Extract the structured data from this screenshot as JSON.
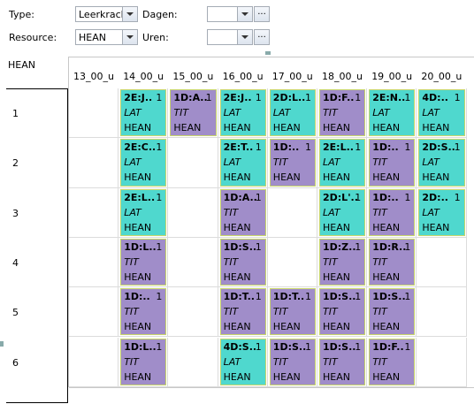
{
  "toolbar": {
    "type_label": "Type:",
    "type_value": "Leerkrach",
    "dagen_label": "Dagen:",
    "resource_label": "Resource:",
    "resource_value": "HEAN",
    "uren_label": "Uren:",
    "browse": "..."
  },
  "grid": {
    "corner": "HEAN",
    "columns": [
      "13_00_u",
      "14_00_u",
      "15_00_u",
      "16_00_u",
      "17_00_u",
      "18_00_u",
      "19_00_u",
      "20_00_u"
    ],
    "rows": [
      {
        "label": "1",
        "cells": [
          null,
          {
            "code": "2E:J..",
            "count": "1",
            "subject": "LAT",
            "teacher": "HEAN",
            "color": "#4fd8ce"
          },
          {
            "code": "1D:A..",
            "count": "1",
            "subject": "TIT",
            "teacher": "HEAN",
            "color": "#a08dc9"
          },
          {
            "code": "2E:J..",
            "count": "1",
            "subject": "LAT",
            "teacher": "HEAN",
            "color": "#4fd8ce"
          },
          {
            "code": "2D:L..",
            "count": "1",
            "subject": "LAT",
            "teacher": "HEAN",
            "color": "#4fd8ce"
          },
          {
            "code": "1D:F..",
            "count": "1",
            "subject": "TIT",
            "teacher": "HEAN",
            "color": "#a08dc9"
          },
          {
            "code": "2E:N..",
            "count": "1",
            "subject": "LAT",
            "teacher": "HEAN",
            "color": "#4fd8ce"
          },
          {
            "code": "4D:..",
            "count": "1",
            "subject": "LAT",
            "teacher": "HEAN",
            "color": "#4fd8ce"
          }
        ]
      },
      {
        "label": "2",
        "cells": [
          null,
          {
            "code": "2E:C..",
            "count": "1",
            "subject": "LAT",
            "teacher": "HEAN",
            "color": "#4fd8ce"
          },
          null,
          {
            "code": "2E:T..",
            "count": "1",
            "subject": "LAT",
            "teacher": "HEAN",
            "color": "#4fd8ce"
          },
          {
            "code": "1D:..",
            "count": "1",
            "subject": "TIT",
            "teacher": "HEAN",
            "color": "#a08dc9"
          },
          {
            "code": "2E:L..",
            "count": "1",
            "subject": "LAT",
            "teacher": "HEAN",
            "color": "#4fd8ce"
          },
          {
            "code": "1D:..",
            "count": "1",
            "subject": "TIT",
            "teacher": "HEAN",
            "color": "#a08dc9"
          },
          {
            "code": "2D:S..",
            "count": "1",
            "subject": "LAT",
            "teacher": "HEAN",
            "color": "#4fd8ce"
          }
        ]
      },
      {
        "label": "3",
        "cells": [
          null,
          {
            "code": "2E:L..",
            "count": "1",
            "subject": "LAT",
            "teacher": "HEAN",
            "color": "#4fd8ce"
          },
          null,
          {
            "code": "1D:A..",
            "count": "1",
            "subject": "TIT",
            "teacher": "HEAN",
            "color": "#a08dc9"
          },
          null,
          {
            "code": "2D:L'..",
            "count": "1",
            "subject": "LAT",
            "teacher": "HEAN",
            "color": "#4fd8ce"
          },
          {
            "code": "1D:..",
            "count": "1",
            "subject": "TIT",
            "teacher": "HEAN",
            "color": "#a08dc9"
          },
          {
            "code": "2D:..",
            "count": "1",
            "subject": "LAT",
            "teacher": "HEAN",
            "color": "#4fd8ce"
          }
        ]
      },
      {
        "label": "4",
        "cells": [
          null,
          {
            "code": "1D:L..",
            "count": "1",
            "subject": "TIT",
            "teacher": "HEAN",
            "color": "#a08dc9"
          },
          null,
          {
            "code": "1D:S..",
            "count": "1",
            "subject": "TIT",
            "teacher": "HEAN",
            "color": "#a08dc9"
          },
          null,
          {
            "code": "1D:Z..",
            "count": "1",
            "subject": "TIT",
            "teacher": "HEAN",
            "color": "#a08dc9"
          },
          {
            "code": "1D:R..",
            "count": "1",
            "subject": "TIT",
            "teacher": "HEAN",
            "color": "#a08dc9"
          },
          null
        ]
      },
      {
        "label": "5",
        "cells": [
          null,
          {
            "code": "1D:..",
            "count": "1",
            "subject": "TIT",
            "teacher": "HEAN",
            "color": "#a08dc9"
          },
          null,
          {
            "code": "1D:T..",
            "count": "1",
            "subject": "TIT",
            "teacher": "HEAN",
            "color": "#a08dc9"
          },
          {
            "code": "1D:T..",
            "count": "1",
            "subject": "TIT",
            "teacher": "HEAN",
            "color": "#a08dc9"
          },
          {
            "code": "1D:S..",
            "count": "1",
            "subject": "TIT",
            "teacher": "HEAN",
            "color": "#a08dc9"
          },
          {
            "code": "1D:S..",
            "count": "1",
            "subject": "TIT",
            "teacher": "HEAN",
            "color": "#a08dc9"
          },
          null
        ]
      },
      {
        "label": "6",
        "cells": [
          null,
          {
            "code": "1D:L..",
            "count": "1",
            "subject": "TIT",
            "teacher": "HEAN",
            "color": "#a08dc9"
          },
          null,
          {
            "code": "4D:S..",
            "count": "1",
            "subject": "LAT",
            "teacher": "HEAN",
            "color": "#4fd8ce"
          },
          {
            "code": "1D:S..",
            "count": "1",
            "subject": "TIT",
            "teacher": "HEAN",
            "color": "#a08dc9"
          },
          {
            "code": "1D:S..",
            "count": "1",
            "subject": "TIT",
            "teacher": "HEAN",
            "color": "#a08dc9"
          },
          {
            "code": "1D:F..",
            "count": "1",
            "subject": "TIT",
            "teacher": "HEAN",
            "color": "#a08dc9"
          },
          null
        ]
      }
    ]
  }
}
